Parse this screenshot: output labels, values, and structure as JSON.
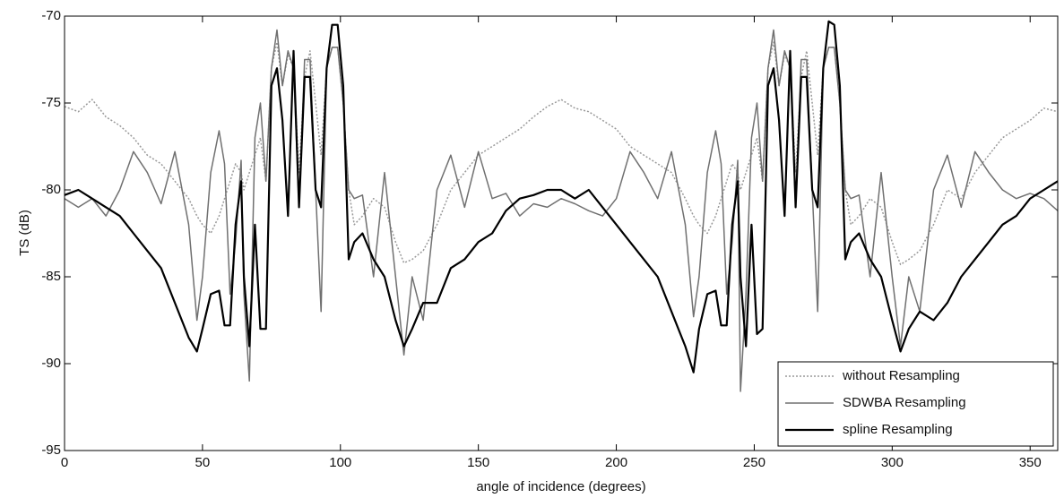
{
  "chart_data": {
    "type": "line",
    "xlabel": "angle of incidence (degrees)",
    "ylabel": "TS (dB)",
    "x": [
      0,
      5,
      10,
      15,
      20,
      25,
      30,
      35,
      40,
      45,
      48,
      50,
      53,
      56,
      58,
      60,
      62,
      64,
      65,
      67,
      69,
      71,
      73,
      75,
      77,
      79,
      81,
      83,
      85,
      87,
      89,
      91,
      93,
      95,
      97,
      99,
      101,
      103,
      105,
      108,
      112,
      116,
      120,
      123,
      126,
      130,
      135,
      140,
      145,
      150,
      155,
      160,
      165,
      170,
      175,
      180,
      185,
      190,
      195,
      200,
      205,
      210,
      215,
      220,
      225,
      228,
      230,
      233,
      236,
      238,
      240,
      242,
      244,
      245,
      247,
      249,
      251,
      253,
      255,
      257,
      259,
      261,
      263,
      265,
      267,
      269,
      271,
      273,
      275,
      277,
      279,
      281,
      283,
      285,
      288,
      292,
      296,
      300,
      303,
      306,
      310,
      315,
      320,
      325,
      330,
      335,
      340,
      345,
      350,
      355,
      360
    ],
    "series": [
      {
        "name": "without Resampling",
        "color": "#999999",
        "style": "dotted",
        "width": 1.5,
        "values": [
          -75.2,
          -75.5,
          -74.8,
          -75.8,
          -76.3,
          -77,
          -78,
          -78.5,
          -79.5,
          -80.5,
          -81.5,
          -82,
          -82.5,
          -81.5,
          -80.5,
          -79.5,
          -78.5,
          -79,
          -80,
          -79,
          -78,
          -77,
          -79.5,
          -73,
          -71.5,
          -74,
          -72.2,
          -73,
          -79,
          -73.5,
          -72,
          -75,
          -78,
          -73,
          -71.8,
          -71.8,
          -75,
          -80,
          -82,
          -81.5,
          -80.5,
          -81,
          -83,
          -84.2,
          -84,
          -83.5,
          -82,
          -80,
          -79,
          -78,
          -77.5,
          -77,
          -76.5,
          -75.8,
          -75.2,
          -74.8,
          -75.3,
          -75.5,
          -76,
          -76.5,
          -77.5,
          -78,
          -78.5,
          -79,
          -80.5,
          -81.5,
          -82,
          -82.5,
          -81.5,
          -80.5,
          -79.5,
          -78.5,
          -79,
          -80,
          -79,
          -78,
          -77,
          -79.5,
          -73,
          -71.5,
          -74,
          -72.2,
          -73,
          -79,
          -73.5,
          -72,
          -75,
          -78,
          -73,
          -71.8,
          -71.8,
          -75,
          -80,
          -82,
          -81.5,
          -80.5,
          -81,
          -83,
          -84.3,
          -84,
          -83.5,
          -82,
          -80,
          -80.5,
          -79,
          -78,
          -77,
          -76.5,
          -76,
          -75.3,
          -75.5
        ]
      },
      {
        "name": "SDWBA Resampling",
        "color": "#707070",
        "style": "solid",
        "width": 1.5,
        "values": [
          -80.5,
          -81,
          -80.5,
          -81.5,
          -80,
          -77.8,
          -79,
          -80.8,
          -77.8,
          -82,
          -87.5,
          -85,
          -79,
          -76.6,
          -78.5,
          -86,
          -83,
          -78.3,
          -86,
          -91,
          -77,
          -75,
          -79.5,
          -73,
          -70.8,
          -74,
          -72,
          -73,
          -81,
          -72.5,
          -72.5,
          -80,
          -87,
          -73,
          -71.8,
          -71.8,
          -75,
          -80,
          -80.5,
          -80.3,
          -85,
          -79,
          -85,
          -89.5,
          -85,
          -87.5,
          -80,
          -78,
          -81,
          -77.8,
          -80.5,
          -80.2,
          -81.5,
          -80.8,
          -81,
          -80.5,
          -80.8,
          -81.2,
          -81.5,
          -80.5,
          -77.8,
          -79,
          -80.5,
          -77.8,
          -82,
          -87.3,
          -85,
          -79,
          -76.6,
          -78.5,
          -86,
          -83,
          -78.3,
          -91.6,
          -86,
          -77,
          -75,
          -79.5,
          -73,
          -70.8,
          -74,
          -72,
          -73,
          -81,
          -72.5,
          -72.5,
          -80,
          -87,
          -73,
          -71.8,
          -71.8,
          -75,
          -80,
          -80.5,
          -80.3,
          -85,
          -79,
          -85,
          -89,
          -85,
          -87,
          -80,
          -78,
          -81,
          -77.8,
          -79,
          -80,
          -80.5,
          -80.2,
          -80.5,
          -81.2
        ]
      },
      {
        "name": "spline Resampling",
        "color": "#000000",
        "style": "solid",
        "width": 2.2,
        "values": [
          -80.3,
          -80,
          -80.5,
          -81,
          -81.5,
          -82.5,
          -83.5,
          -84.5,
          -86.5,
          -88.5,
          -89.3,
          -88,
          -86,
          -85.8,
          -87.8,
          -87.8,
          -82,
          -79.5,
          -85,
          -89,
          -82,
          -88,
          -88,
          -74,
          -73,
          -76,
          -81.5,
          -72,
          -81,
          -73.5,
          -73.5,
          -80,
          -81,
          -73,
          -70.5,
          -70.5,
          -74,
          -84,
          -83,
          -82.5,
          -84,
          -85,
          -87.5,
          -89,
          -88,
          -86.5,
          -86.5,
          -84.5,
          -84,
          -83,
          -82.5,
          -81.2,
          -80.5,
          -80.3,
          -80,
          -80,
          -80.5,
          -80,
          -81,
          -82,
          -83,
          -84,
          -85,
          -87,
          -89,
          -90.5,
          -88,
          -86,
          -85.8,
          -87.8,
          -87.8,
          -82,
          -79.5,
          -85,
          -89,
          -82,
          -88.3,
          -88,
          -74,
          -73,
          -76,
          -81.5,
          -72,
          -81,
          -73.5,
          -73.5,
          -80,
          -81,
          -73,
          -70.3,
          -70.5,
          -74,
          -84,
          -83,
          -82.5,
          -84,
          -85,
          -87.5,
          -89.3,
          -88,
          -87,
          -87.5,
          -86.5,
          -85,
          -84,
          -83,
          -82,
          -81.5,
          -80.5,
          -80,
          -79.5
        ]
      }
    ],
    "xlim": [
      0,
      360
    ],
    "xticks": [
      0,
      50,
      100,
      150,
      200,
      250,
      300,
      350
    ],
    "ylim": [
      -95,
      -70
    ],
    "yticks": [
      -95,
      -90,
      -85,
      -80,
      -75,
      -70
    ],
    "grid": false,
    "legend": "lower right"
  }
}
